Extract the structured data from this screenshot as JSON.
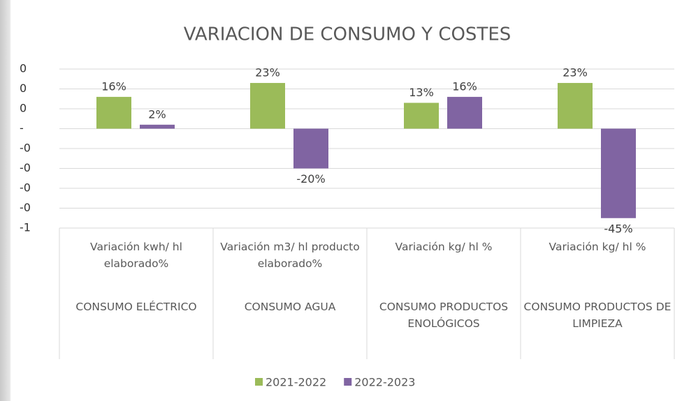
{
  "chart_data": {
    "type": "bar",
    "title": "VARIACION  DE CONSUMO Y COSTES",
    "categories": [
      "Variación kwh/ hl elaborado%",
      "Variación m3/ hl producto elaborado%",
      "Variación kg/ hl %",
      "Variación kg/ hl %"
    ],
    "category_groups": [
      "CONSUMO ELÉCTRICO",
      "CONSUMO AGUA",
      "CONSUMO PRODUCTOS ENOLÓGICOS",
      "CONSUMO PRODUCTOS DE LIMPIEZA"
    ],
    "series": [
      {
        "name": "2021-2022",
        "color": "#9bbb59",
        "values": [
          0.16,
          0.23,
          0.13,
          0.23
        ],
        "value_labels": [
          "16%",
          "23%",
          "13%",
          "23%"
        ]
      },
      {
        "name": "2022-2023",
        "color": "#8064a2",
        "values": [
          0.02,
          -0.2,
          0.16,
          -0.45
        ],
        "value_labels": [
          "2%",
          "-20%",
          "16%",
          "-45%"
        ]
      }
    ],
    "ylim": [
      -0.5,
      0.3
    ],
    "yticks": [
      {
        "value": 0.3,
        "label": "0"
      },
      {
        "value": 0.2,
        "label": "0"
      },
      {
        "value": 0.1,
        "label": "0"
      },
      {
        "value": 0,
        "label": "-"
      },
      {
        "value": -0.1,
        "label": "-0"
      },
      {
        "value": -0.2,
        "label": "-0"
      },
      {
        "value": -0.3,
        "label": "-0"
      },
      {
        "value": -0.4,
        "label": "-0"
      },
      {
        "value": -0.5,
        "label": "-1"
      }
    ],
    "grid": true,
    "legend": "bottom"
  }
}
